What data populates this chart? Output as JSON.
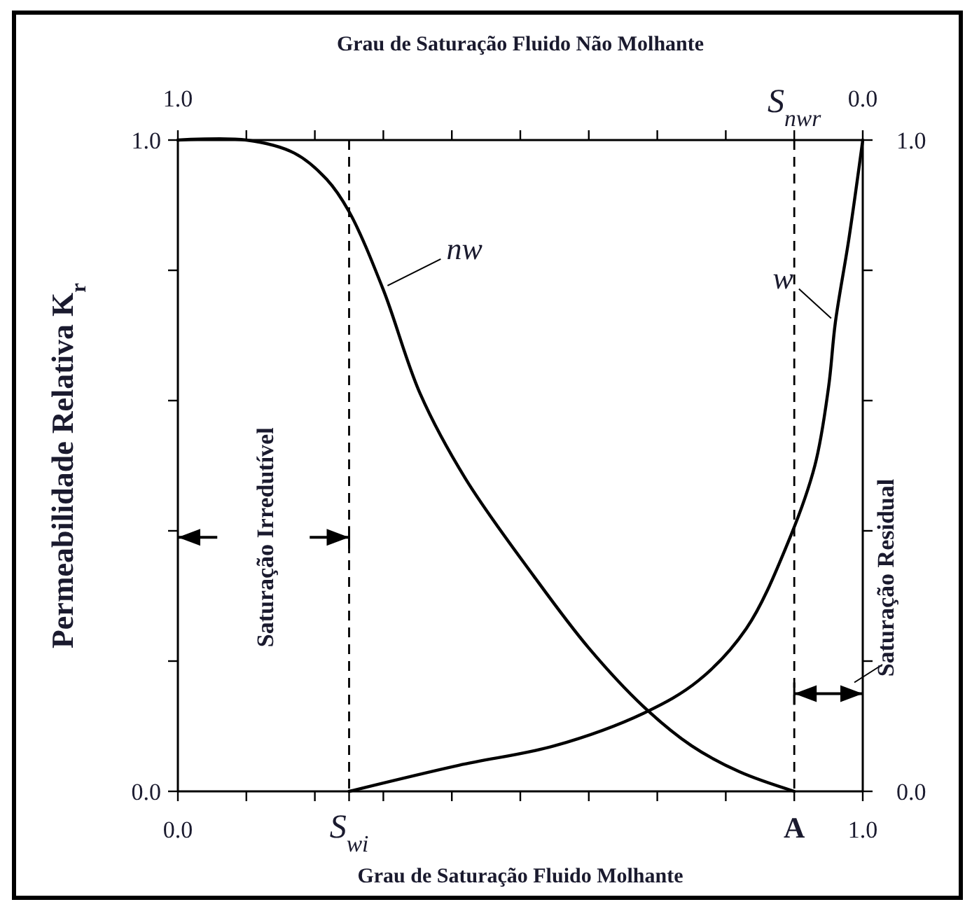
{
  "chart_data": {
    "type": "line",
    "xlabel": "Grau de Saturação Fluido  Molhante",
    "x2label": "Grau de Saturação Fluido Não Molhante",
    "ylabel": "Permeabilidade Relativa K$_{r}$",
    "xlim": [
      0,
      1
    ],
    "xticks": [
      {
        "value": 0,
        "label": "0.0"
      },
      {
        "value": 0.1,
        "label": null
      },
      {
        "value": 0.2,
        "label": null
      },
      {
        "value": 0.25,
        "label": "S$_{wi}$"
      },
      {
        "value": 0.3,
        "label": null
      },
      {
        "value": 0.4,
        "label": null
      },
      {
        "value": 0.5,
        "label": null
      },
      {
        "value": 0.6,
        "label": null
      },
      {
        "value": 0.7,
        "label": null
      },
      {
        "value": 0.8,
        "label": null
      },
      {
        "value": 0.9,
        "label": "A"
      },
      {
        "value": 1,
        "label": "1.0"
      }
    ],
    "x2lim": [
      1,
      0
    ],
    "x2ticks": [
      {
        "value": 1,
        "label": "1.0"
      },
      {
        "value": 0.9,
        "label": null
      },
      {
        "value": 0.8,
        "label": null
      },
      {
        "value": 0.7,
        "label": null
      },
      {
        "value": 0.6,
        "label": null
      },
      {
        "value": 0.5,
        "label": null
      },
      {
        "value": 0.4,
        "label": null
      },
      {
        "value": 0.3,
        "label": null
      },
      {
        "value": 0.2,
        "label": null
      },
      {
        "value": 0.1,
        "label": "S$_{nwr}$"
      },
      {
        "value": 0,
        "label": "0.0"
      }
    ],
    "ylim": [
      0,
      1
    ],
    "yticks": [
      {
        "value": 0,
        "label": "0.0"
      },
      {
        "value": 0.2,
        "label": null
      },
      {
        "value": 0.4,
        "label": null
      },
      {
        "value": 0.6,
        "label": null
      },
      {
        "value": 0.8,
        "label": null
      },
      {
        "value": 1,
        "label": "1.0"
      }
    ],
    "y2lim": [
      0,
      1
    ],
    "y2ticks": [
      {
        "value": 0,
        "label": "0.0"
      },
      {
        "value": 0.2,
        "label": null
      },
      {
        "value": 0.4,
        "label": null
      },
      {
        "value": 0.6,
        "label": null
      },
      {
        "value": 0.8,
        "label": null
      },
      {
        "value": 1,
        "label": "1.0"
      }
    ],
    "marker": "none",
    "line_style": "solid",
    "grid": false,
    "series": [
      {
        "name": "nw",
        "color": "#000000",
        "x": [
          0,
          0.1,
          0.17,
          0.217,
          0.25,
          0.3,
          0.354,
          0.42,
          0.52,
          0.6,
          0.68,
          0.75,
          0.82,
          0.9
        ],
        "values": [
          1,
          1,
          0.98,
          0.94,
          0.89,
          0.77,
          0.61,
          0.48,
          0.33,
          0.22,
          0.13,
          0.07,
          0.03,
          0
        ]
      },
      {
        "name": "w",
        "color": "#000000",
        "x": [
          0.25,
          0.41,
          0.55,
          0.68,
          0.76,
          0.83,
          0.89,
          0.93,
          0.95,
          0.96,
          0.98,
          1
        ],
        "values": [
          0,
          0.04,
          0.07,
          0.12,
          0.17,
          0.25,
          0.38,
          0.5,
          0.62,
          0.72,
          0.85,
          1
        ]
      }
    ],
    "ref_lines": [
      {
        "axis": "x",
        "value": 0.25,
        "line_style": "dashed",
        "color": "#000000"
      },
      {
        "axis": "x",
        "value": 0.9,
        "line_style": "dashed",
        "color": "#000000"
      }
    ],
    "annotations": [
      {
        "text": "Saturação Irredutível",
        "x": 0.25,
        "y": 0.39
      },
      {
        "text": "Saturação Residual",
        "x": 0.9,
        "y": 0.15
      }
    ]
  }
}
